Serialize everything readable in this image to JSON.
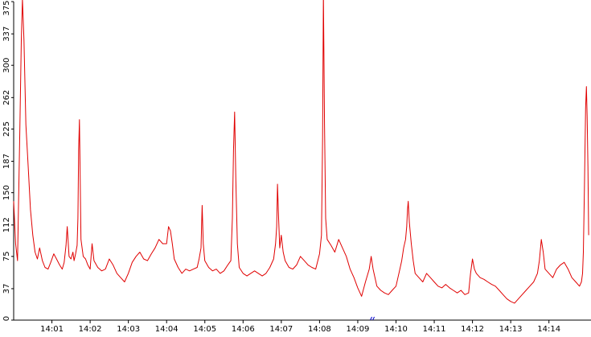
{
  "chart_data": {
    "type": "line",
    "title": "",
    "xlabel": "",
    "ylabel": "",
    "ylim": [
      0,
      375
    ],
    "y_ticks": [
      {
        "value": 0,
        "label": "0"
      },
      {
        "value": 37,
        "label": "37"
      },
      {
        "value": 75,
        "label": "75"
      },
      {
        "value": 112,
        "label": "112"
      },
      {
        "value": 150,
        "label": "150"
      },
      {
        "value": 187,
        "label": "187"
      },
      {
        "value": 225,
        "label": "225"
      },
      {
        "value": 262,
        "label": "262"
      },
      {
        "value": 300,
        "label": "300"
      },
      {
        "value": 337,
        "label": "337"
      },
      {
        "value": 375,
        "label": "375"
      }
    ],
    "x_range_minutes": [
      0,
      15.1
    ],
    "x_ticks": [
      {
        "value": 1,
        "label": "14:01"
      },
      {
        "value": 2,
        "label": "14:02"
      },
      {
        "value": 3,
        "label": "14:03"
      },
      {
        "value": 4,
        "label": "14:04"
      },
      {
        "value": 5,
        "label": "14:05"
      },
      {
        "value": 6,
        "label": "14:06"
      },
      {
        "value": 7,
        "label": "14:07"
      },
      {
        "value": 8,
        "label": "14:08"
      },
      {
        "value": 9,
        "label": "14:09"
      },
      {
        "value": 10,
        "label": "14:10"
      },
      {
        "value": 11,
        "label": "14:11"
      },
      {
        "value": 12,
        "label": "14:12"
      },
      {
        "value": 13,
        "label": "14:13"
      },
      {
        "value": 14,
        "label": "14:14"
      }
    ],
    "grid": false,
    "legend": "none",
    "series_color": "#e00000",
    "axis_color": "#000000",
    "marker_color": "#0000cc",
    "series": [
      {
        "points": [
          [
            0.0,
            140
          ],
          [
            0.05,
            90
          ],
          [
            0.1,
            70
          ],
          [
            0.16,
            220
          ],
          [
            0.2,
            330
          ],
          [
            0.23,
            378
          ],
          [
            0.27,
            330
          ],
          [
            0.32,
            230
          ],
          [
            0.38,
            180
          ],
          [
            0.44,
            130
          ],
          [
            0.5,
            100
          ],
          [
            0.56,
            80
          ],
          [
            0.62,
            72
          ],
          [
            0.68,
            85
          ],
          [
            0.75,
            70
          ],
          [
            0.82,
            62
          ],
          [
            0.9,
            60
          ],
          [
            0.97,
            68
          ],
          [
            1.05,
            78
          ],
          [
            1.12,
            72
          ],
          [
            1.2,
            65
          ],
          [
            1.27,
            60
          ],
          [
            1.32,
            68
          ],
          [
            1.37,
            88
          ],
          [
            1.4,
            110
          ],
          [
            1.45,
            75
          ],
          [
            1.5,
            72
          ],
          [
            1.55,
            80
          ],
          [
            1.58,
            70
          ],
          [
            1.62,
            78
          ],
          [
            1.66,
            88
          ],
          [
            1.68,
            120
          ],
          [
            1.7,
            200
          ],
          [
            1.72,
            236
          ],
          [
            1.74,
            170
          ],
          [
            1.76,
            95
          ],
          [
            1.82,
            75
          ],
          [
            1.88,
            72
          ],
          [
            1.94,
            65
          ],
          [
            2.0,
            60
          ],
          [
            2.05,
            90
          ],
          [
            2.1,
            70
          ],
          [
            2.2,
            62
          ],
          [
            2.3,
            58
          ],
          [
            2.4,
            60
          ],
          [
            2.5,
            72
          ],
          [
            2.6,
            65
          ],
          [
            2.7,
            55
          ],
          [
            2.8,
            50
          ],
          [
            2.9,
            45
          ],
          [
            3.0,
            55
          ],
          [
            3.1,
            68
          ],
          [
            3.2,
            75
          ],
          [
            3.3,
            80
          ],
          [
            3.4,
            72
          ],
          [
            3.5,
            70
          ],
          [
            3.6,
            78
          ],
          [
            3.7,
            85
          ],
          [
            3.8,
            95
          ],
          [
            3.9,
            90
          ],
          [
            4.0,
            90
          ],
          [
            4.05,
            110
          ],
          [
            4.1,
            105
          ],
          [
            4.15,
            90
          ],
          [
            4.2,
            72
          ],
          [
            4.3,
            62
          ],
          [
            4.4,
            55
          ],
          [
            4.5,
            60
          ],
          [
            4.6,
            58
          ],
          [
            4.7,
            60
          ],
          [
            4.8,
            62
          ],
          [
            4.85,
            72
          ],
          [
            4.9,
            85
          ],
          [
            4.93,
            135
          ],
          [
            4.96,
            90
          ],
          [
            5.0,
            70
          ],
          [
            5.1,
            62
          ],
          [
            5.2,
            58
          ],
          [
            5.3,
            60
          ],
          [
            5.4,
            55
          ],
          [
            5.5,
            58
          ],
          [
            5.6,
            65
          ],
          [
            5.68,
            70
          ],
          [
            5.72,
            120
          ],
          [
            5.75,
            200
          ],
          [
            5.78,
            245
          ],
          [
            5.81,
            165
          ],
          [
            5.85,
            90
          ],
          [
            5.9,
            62
          ],
          [
            6.0,
            55
          ],
          [
            6.1,
            52
          ],
          [
            6.2,
            55
          ],
          [
            6.3,
            58
          ],
          [
            6.4,
            55
          ],
          [
            6.5,
            52
          ],
          [
            6.6,
            55
          ],
          [
            6.7,
            62
          ],
          [
            6.8,
            72
          ],
          [
            6.85,
            90
          ],
          [
            6.88,
            110
          ],
          [
            6.9,
            160
          ],
          [
            6.93,
            120
          ],
          [
            6.96,
            85
          ],
          [
            7.0,
            100
          ],
          [
            7.05,
            80
          ],
          [
            7.1,
            70
          ],
          [
            7.2,
            62
          ],
          [
            7.3,
            60
          ],
          [
            7.4,
            65
          ],
          [
            7.5,
            75
          ],
          [
            7.6,
            70
          ],
          [
            7.7,
            65
          ],
          [
            7.8,
            62
          ],
          [
            7.9,
            60
          ],
          [
            8.0,
            78
          ],
          [
            8.05,
            100
          ],
          [
            8.08,
            215
          ],
          [
            8.1,
            385
          ],
          [
            8.13,
            230
          ],
          [
            8.16,
            120
          ],
          [
            8.2,
            95
          ],
          [
            8.3,
            88
          ],
          [
            8.4,
            80
          ],
          [
            8.5,
            95
          ],
          [
            8.6,
            85
          ],
          [
            8.7,
            75
          ],
          [
            8.8,
            60
          ],
          [
            8.9,
            50
          ],
          [
            9.0,
            38
          ],
          [
            9.1,
            28
          ],
          [
            9.2,
            45
          ],
          [
            9.3,
            60
          ],
          [
            9.35,
            75
          ],
          [
            9.4,
            60
          ],
          [
            9.5,
            40
          ],
          [
            9.6,
            35
          ],
          [
            9.7,
            32
          ],
          [
            9.8,
            30
          ],
          [
            9.9,
            35
          ],
          [
            10.0,
            40
          ],
          [
            10.05,
            50
          ],
          [
            10.1,
            60
          ],
          [
            10.15,
            70
          ],
          [
            10.2,
            85
          ],
          [
            10.25,
            95
          ],
          [
            10.28,
            110
          ],
          [
            10.3,
            130
          ],
          [
            10.32,
            140
          ],
          [
            10.35,
            115
          ],
          [
            10.4,
            90
          ],
          [
            10.45,
            70
          ],
          [
            10.5,
            55
          ],
          [
            10.6,
            50
          ],
          [
            10.7,
            45
          ],
          [
            10.8,
            55
          ],
          [
            10.9,
            50
          ],
          [
            11.0,
            45
          ],
          [
            11.1,
            40
          ],
          [
            11.2,
            38
          ],
          [
            11.3,
            42
          ],
          [
            11.4,
            38
          ],
          [
            11.5,
            35
          ],
          [
            11.6,
            32
          ],
          [
            11.7,
            35
          ],
          [
            11.8,
            30
          ],
          [
            11.9,
            32
          ],
          [
            11.95,
            55
          ],
          [
            12.0,
            72
          ],
          [
            12.05,
            60
          ],
          [
            12.1,
            55
          ],
          [
            12.2,
            50
          ],
          [
            12.3,
            48
          ],
          [
            12.4,
            45
          ],
          [
            12.5,
            42
          ],
          [
            12.6,
            40
          ],
          [
            12.7,
            35
          ],
          [
            12.8,
            30
          ],
          [
            12.9,
            25
          ],
          [
            13.0,
            22
          ],
          [
            13.1,
            20
          ],
          [
            13.2,
            25
          ],
          [
            13.3,
            30
          ],
          [
            13.4,
            35
          ],
          [
            13.5,
            40
          ],
          [
            13.6,
            45
          ],
          [
            13.7,
            55
          ],
          [
            13.75,
            70
          ],
          [
            13.8,
            95
          ],
          [
            13.85,
            80
          ],
          [
            13.9,
            60
          ],
          [
            14.0,
            55
          ],
          [
            14.1,
            50
          ],
          [
            14.2,
            60
          ],
          [
            14.3,
            65
          ],
          [
            14.4,
            68
          ],
          [
            14.5,
            60
          ],
          [
            14.6,
            50
          ],
          [
            14.7,
            45
          ],
          [
            14.8,
            40
          ],
          [
            14.85,
            45
          ],
          [
            14.88,
            55
          ],
          [
            14.9,
            80
          ],
          [
            14.93,
            160
          ],
          [
            14.96,
            250
          ],
          [
            14.98,
            275
          ],
          [
            15.0,
            240
          ],
          [
            15.02,
            180
          ],
          [
            15.04,
            100
          ]
        ]
      }
    ]
  }
}
